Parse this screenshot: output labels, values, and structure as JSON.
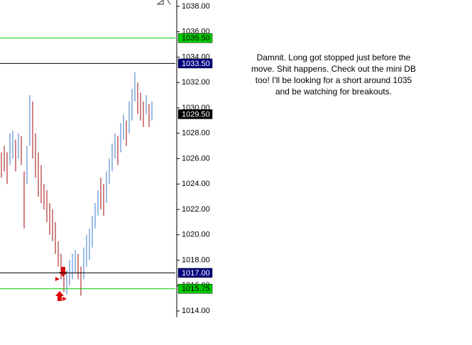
{
  "chart_data": {
    "type": "ohlc",
    "low": [
      1024.5,
      1025,
      1024,
      1025.5,
      1026,
      1025,
      1026,
      1025.5,
      1020.5,
      1024,
      1027,
      1026,
      1024.5,
      1023,
      1022.5,
      1022,
      1021,
      1020,
      1019.5,
      1018.5,
      1017.5,
      1016.5,
      1015.5,
      1015.3,
      1016,
      1016.5,
      1017,
      1016.5,
      1015.2,
      1016.5,
      1017.5,
      1018,
      1019,
      1020.5,
      1021.5,
      1022,
      1021.5,
      1022.5,
      1024,
      1025,
      1026,
      1025.5,
      1026.5,
      1027.5,
      1027,
      1028,
      1029,
      1030.5,
      1029.5,
      1029,
      1028.5,
      1029.5,
      1028.5,
      1029
    ],
    "high": [
      1026.5,
      1027,
      1026.5,
      1028,
      1028.2,
      1027.5,
      1028,
      1027.8,
      1025,
      1027,
      1031,
      1030.5,
      1028,
      1026.5,
      1025.5,
      1024,
      1023.5,
      1022.5,
      1022,
      1021,
      1019.5,
      1018.5,
      1017.5,
      1017.2,
      1018,
      1018.5,
      1018.8,
      1018.5,
      1017.5,
      1019,
      1020,
      1020.5,
      1021.5,
      1022.5,
      1023.5,
      1024.5,
      1024,
      1025,
      1026,
      1027.2,
      1028,
      1027.8,
      1028.8,
      1029.5,
      1029,
      1030.5,
      1031.5,
      1032.8,
      1032,
      1031.2,
      1030.5,
      1031,
      1030.3,
      1030.5
    ],
    "rising": [
      false,
      false,
      false,
      true,
      true,
      false,
      true,
      false,
      false,
      true,
      true,
      false,
      false,
      false,
      false,
      false,
      false,
      false,
      false,
      false,
      false,
      false,
      false,
      true,
      true,
      true,
      true,
      false,
      false,
      true,
      true,
      true,
      true,
      true,
      true,
      false,
      false,
      true,
      true,
      true,
      true,
      false,
      true,
      true,
      false,
      true,
      true,
      true,
      false,
      false,
      false,
      true,
      false,
      true
    ],
    "up_color": "#5b8fd8",
    "down_color": "#b03030",
    "ylim": [
      1013.5,
      1038.5
    ],
    "yticks": [
      {
        "value": 1014,
        "label": "1014.00"
      },
      {
        "value": 1016,
        "label": "1016.00"
      },
      {
        "value": 1018,
        "label": "1018.00"
      },
      {
        "value": 1020,
        "label": "1020.00"
      },
      {
        "value": 1022,
        "label": "1022.00"
      },
      {
        "value": 1024,
        "label": "1024.00"
      },
      {
        "value": 1026,
        "label": "1026.00"
      },
      {
        "value": 1028,
        "label": "1028.00"
      },
      {
        "value": 1030,
        "label": "1030.00"
      },
      {
        "value": 1032,
        "label": "1032.00"
      },
      {
        "value": 1034,
        "label": "1034.00"
      },
      {
        "value": 1036,
        "label": "1036.00"
      },
      {
        "value": 1038,
        "label": "1038.00"
      }
    ],
    "price_levels": [
      {
        "value": 1035.5,
        "label": "1035.50",
        "color": "#00cc00",
        "text_color": "#000000",
        "line": true
      },
      {
        "value": 1033.5,
        "label": "1033.50",
        "color": "#000080",
        "text_color": "#ffffff",
        "line": true
      },
      {
        "value": 1029.5,
        "label": "1029.50",
        "color": "#000000",
        "text_color": "#ffffff",
        "line": false
      },
      {
        "value": 1017,
        "label": "1017.00",
        "color": "#000080",
        "text_color": "#ffffff",
        "line": true
      },
      {
        "value": 1015.75,
        "label": "1015.75",
        "color": "#00cc00",
        "text_color": "#000000",
        "line": true
      }
    ],
    "annotation": [
      "Damnit. Long got stopped just before the",
      "move. Shit happens. Check out the mini DB",
      "too! I'll be looking for a short around 1035",
      "and be watching for breakouts."
    ]
  }
}
